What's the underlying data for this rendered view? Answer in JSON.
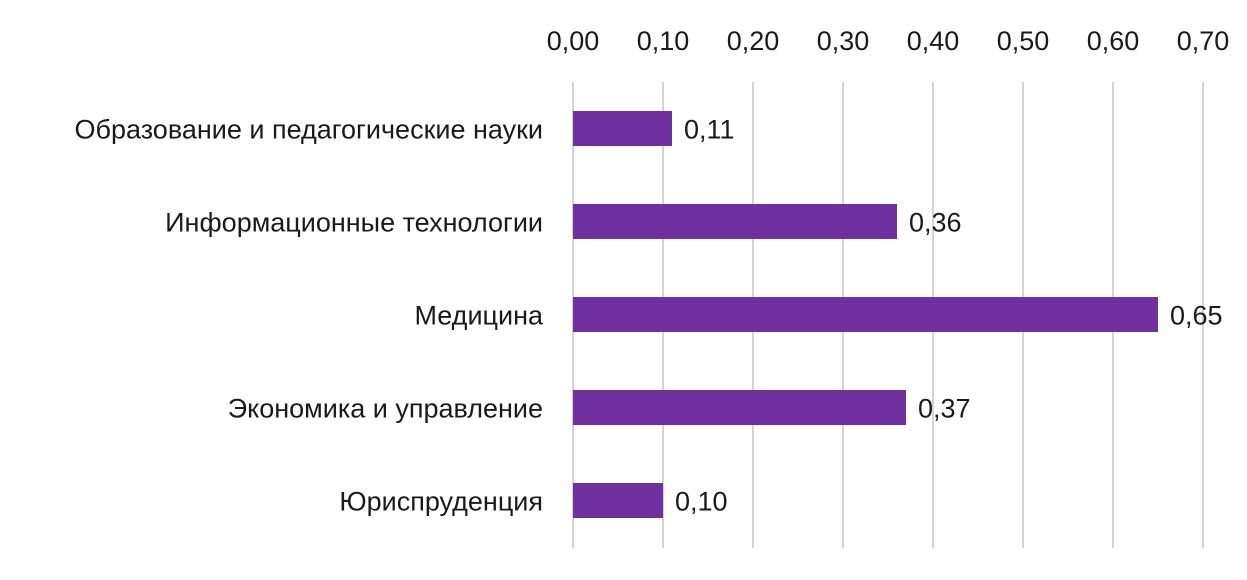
{
  "chart_data": {
    "type": "bar",
    "orientation": "horizontal",
    "title": "",
    "xlabel": "",
    "ylabel": "",
    "categories": [
      "Образование и педагогические науки",
      "Информационные технологии",
      "Медицина",
      "Экономика и управление",
      "Юриспруденция"
    ],
    "values": [
      0.11,
      0.36,
      0.65,
      0.37,
      0.1
    ],
    "data_labels": [
      "0,11",
      "0,36",
      "0,65",
      "0,37",
      "0,10"
    ],
    "xlim": [
      0,
      0.7
    ],
    "ticks": [
      0,
      0.1,
      0.2,
      0.3,
      0.4,
      0.5,
      0.6,
      0.7
    ],
    "tick_labels": [
      "0,00",
      "0,10",
      "0,20",
      "0,30",
      "0,40",
      "0,50",
      "0,60",
      "0,70"
    ],
    "axis_position": "top",
    "grid": true,
    "legend": "none",
    "colors": {
      "bar": "#7030a0",
      "grid": "#d4d4d4",
      "text": "#1a1a1a"
    }
  }
}
